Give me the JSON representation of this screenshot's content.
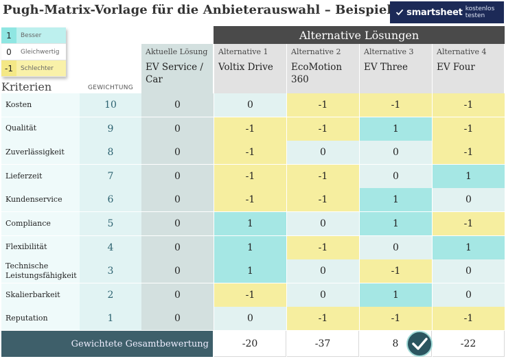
{
  "title": "Pugh-Matrix-Vorlage für die Anbieterauswahl – Beispiel",
  "brand": {
    "logo": "smartsheet",
    "sub": "kostenlos testen"
  },
  "legend": [
    {
      "key": "1",
      "label": "Besser"
    },
    {
      "key": "0",
      "label": "Gleichwertig"
    },
    {
      "key": "-1",
      "label": "Schlechter"
    }
  ],
  "headers": {
    "criteria": "Kriterien",
    "weight": "GEWICHTUNG",
    "alternatives_banner": "Alternative Lösungen",
    "current": {
      "label": "Aktuelle Lösung",
      "name": "EV Service / Car"
    },
    "alternatives": [
      {
        "label": "Alternative 1",
        "name": "Voltix Drive"
      },
      {
        "label": "Alternative 2",
        "name": "EcoMotion 360"
      },
      {
        "label": "Alternative 3",
        "name": "EV Three"
      },
      {
        "label": "Alternative 4",
        "name": "EV Four"
      }
    ]
  },
  "rows": [
    {
      "criterion": "Kosten",
      "weight": "10",
      "current": "0",
      "alts": [
        "0",
        "-1",
        "-1",
        "-1"
      ]
    },
    {
      "criterion": "Qualität",
      "weight": "9",
      "current": "0",
      "alts": [
        "-1",
        "-1",
        "1",
        "-1"
      ]
    },
    {
      "criterion": "Zuverlässigkeit",
      "weight": "8",
      "current": "0",
      "alts": [
        "-1",
        "0",
        "0",
        "-1"
      ]
    },
    {
      "criterion": "Lieferzeit",
      "weight": "7",
      "current": "0",
      "alts": [
        "-1",
        "-1",
        "0",
        "1"
      ]
    },
    {
      "criterion": "Kundenservice",
      "weight": "6",
      "current": "0",
      "alts": [
        "-1",
        "-1",
        "1",
        "0"
      ]
    },
    {
      "criterion": "Compliance",
      "weight": "5",
      "current": "0",
      "alts": [
        "1",
        "0",
        "1",
        "-1"
      ]
    },
    {
      "criterion": "Flexibilität",
      "weight": "4",
      "current": "0",
      "alts": [
        "1",
        "-1",
        "0",
        "1"
      ]
    },
    {
      "criterion": "Technische Leistungsfähigkeit",
      "weight": "3",
      "current": "0",
      "alts": [
        "1",
        "0",
        "-1",
        "0"
      ]
    },
    {
      "criterion": "Skalierbarkeit",
      "weight": "2",
      "current": "0",
      "alts": [
        "-1",
        "0",
        "1",
        "0"
      ]
    },
    {
      "criterion": "Reputation",
      "weight": "1",
      "current": "0",
      "alts": [
        "0",
        "-1",
        "-1",
        "-1"
      ]
    }
  ],
  "totals": {
    "label": "Gewichtete Gesamtbewertung",
    "values": [
      "-20",
      "-37",
      "8",
      "-22"
    ],
    "winner": "Alternative 3"
  },
  "colors": {
    "better": "#a5e7e4",
    "equal": "#e2f2f1",
    "worse": "#f6ee9f",
    "banner": "#4a4a4a",
    "totals_bar": "#3e5f6a",
    "brand": "#1c2a57"
  },
  "icons": {
    "brand": "smartsheet-check-icon",
    "winner": "checkmark-badge-icon"
  }
}
